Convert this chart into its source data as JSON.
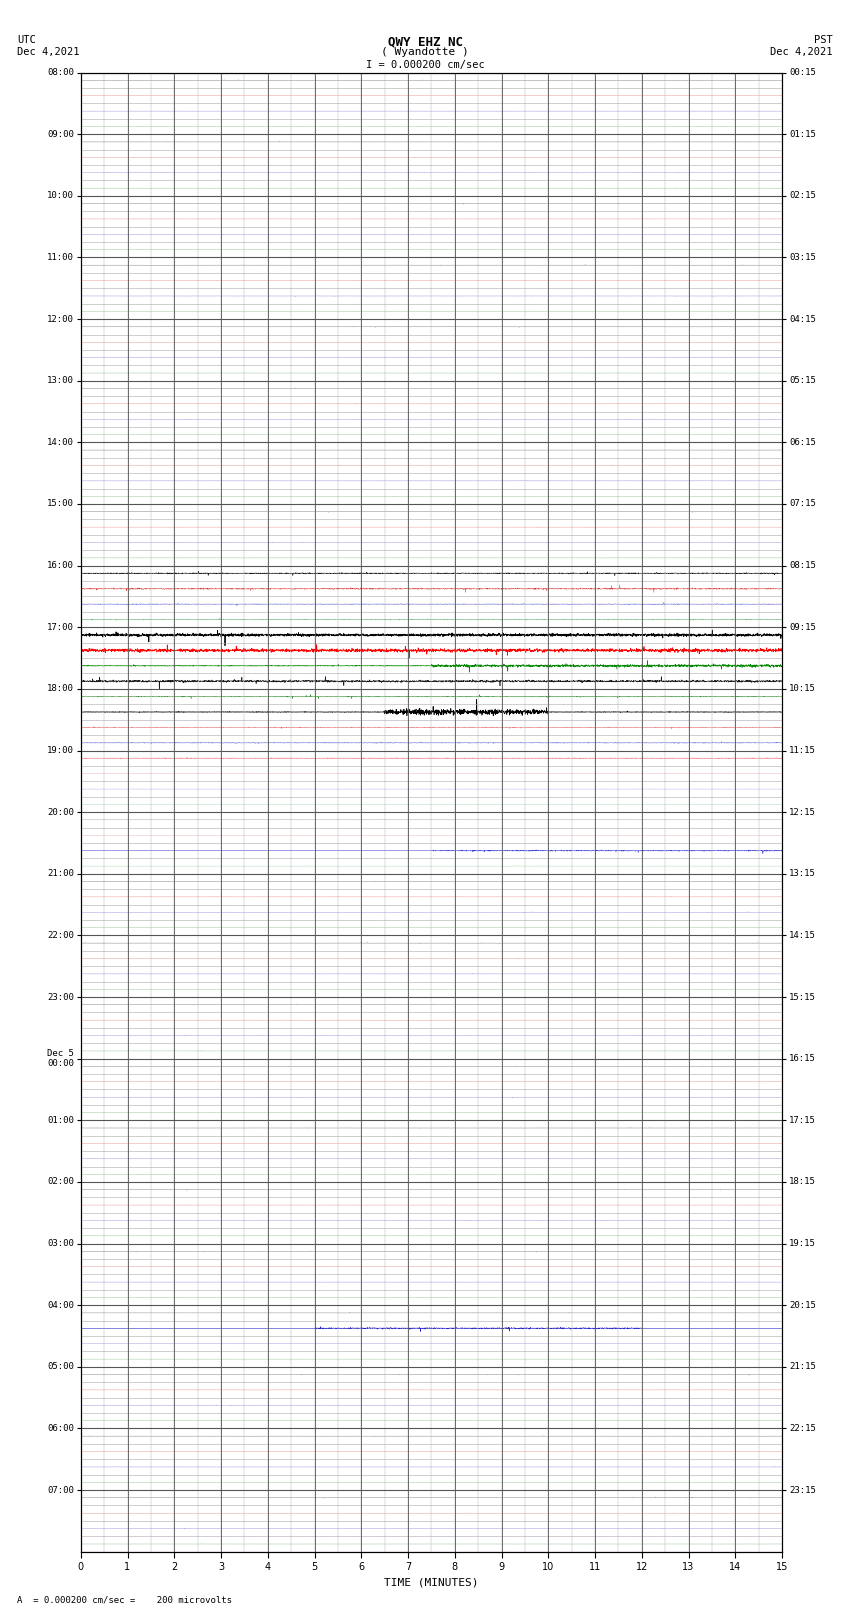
{
  "title_line1": "QWY EHZ NC",
  "title_line2": "( Wyandotte )",
  "title_line3": "I = 0.000200 cm/sec",
  "left_label_top": "UTC",
  "left_label_date": "Dec 4,2021",
  "right_label_top": "PST",
  "right_label_date": "Dec 4,2021",
  "bottom_label": "TIME (MINUTES)",
  "footer_text": "A  = 0.000200 cm/sec =    200 microvolts",
  "utc_times": [
    "08:00",
    "09:00",
    "10:00",
    "11:00",
    "12:00",
    "13:00",
    "14:00",
    "15:00",
    "16:00",
    "17:00",
    "18:00",
    "19:00",
    "20:00",
    "21:00",
    "22:00",
    "23:00",
    "Dec 5\n00:00",
    "01:00",
    "02:00",
    "03:00",
    "04:00",
    "05:00",
    "06:00",
    "07:00"
  ],
  "pst_times": [
    "00:15",
    "01:15",
    "02:15",
    "03:15",
    "04:15",
    "05:15",
    "06:15",
    "07:15",
    "08:15",
    "09:15",
    "10:15",
    "11:15",
    "12:15",
    "13:15",
    "14:15",
    "15:15",
    "16:15",
    "17:15",
    "18:15",
    "19:15",
    "20:15",
    "21:15",
    "22:15",
    "23:15"
  ],
  "num_rows": 24,
  "subrows_per_hour": 4,
  "x_min": 0,
  "x_max": 15,
  "bg_color": "#ffffff",
  "grid_color_major": "#555555",
  "grid_color_minor": "#aaaaaa",
  "seed": 42
}
